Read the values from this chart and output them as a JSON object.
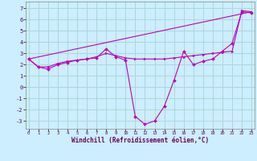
{
  "xlabel": "Windchill (Refroidissement éolien,°C)",
  "background_color": "#cceeff",
  "grid_color": "#aad8d8",
  "line_color": "#bb00bb",
  "ylim": [
    -3.7,
    7.6
  ],
  "xlim": [
    -0.3,
    23.3
  ],
  "y_ticks": [
    -3,
    -2,
    -1,
    0,
    1,
    2,
    3,
    4,
    5,
    6,
    7
  ],
  "x_ticks": [
    0,
    1,
    2,
    3,
    4,
    5,
    6,
    7,
    8,
    9,
    10,
    11,
    12,
    13,
    14,
    15,
    16,
    17,
    18,
    19,
    20,
    21,
    22,
    23
  ],
  "line1_x": [
    0,
    1,
    2,
    3,
    4,
    5,
    6,
    7,
    8,
    9,
    10,
    11,
    12,
    13,
    14,
    15,
    16,
    17,
    18,
    19,
    20,
    21,
    22,
    23
  ],
  "line1_y": [
    2.5,
    1.8,
    1.6,
    2.0,
    2.2,
    2.4,
    2.5,
    2.6,
    3.4,
    2.7,
    2.4,
    -2.6,
    -3.3,
    -3.0,
    -1.7,
    0.6,
    3.2,
    2.0,
    2.3,
    2.5,
    3.2,
    3.9,
    6.7,
    6.6
  ],
  "line2_x": [
    0,
    1,
    2,
    3,
    4,
    5,
    6,
    7,
    8,
    9,
    10,
    11,
    12,
    13,
    14,
    15,
    16,
    17,
    18,
    19,
    20,
    21,
    22,
    23
  ],
  "line2_y": [
    2.5,
    1.8,
    1.8,
    2.1,
    2.3,
    2.4,
    2.5,
    2.7,
    3.0,
    2.8,
    2.6,
    2.5,
    2.5,
    2.5,
    2.5,
    2.6,
    2.7,
    2.8,
    2.9,
    3.0,
    3.1,
    3.2,
    6.8,
    6.7
  ],
  "line3_x": [
    0,
    23
  ],
  "line3_y": [
    2.5,
    6.7
  ]
}
